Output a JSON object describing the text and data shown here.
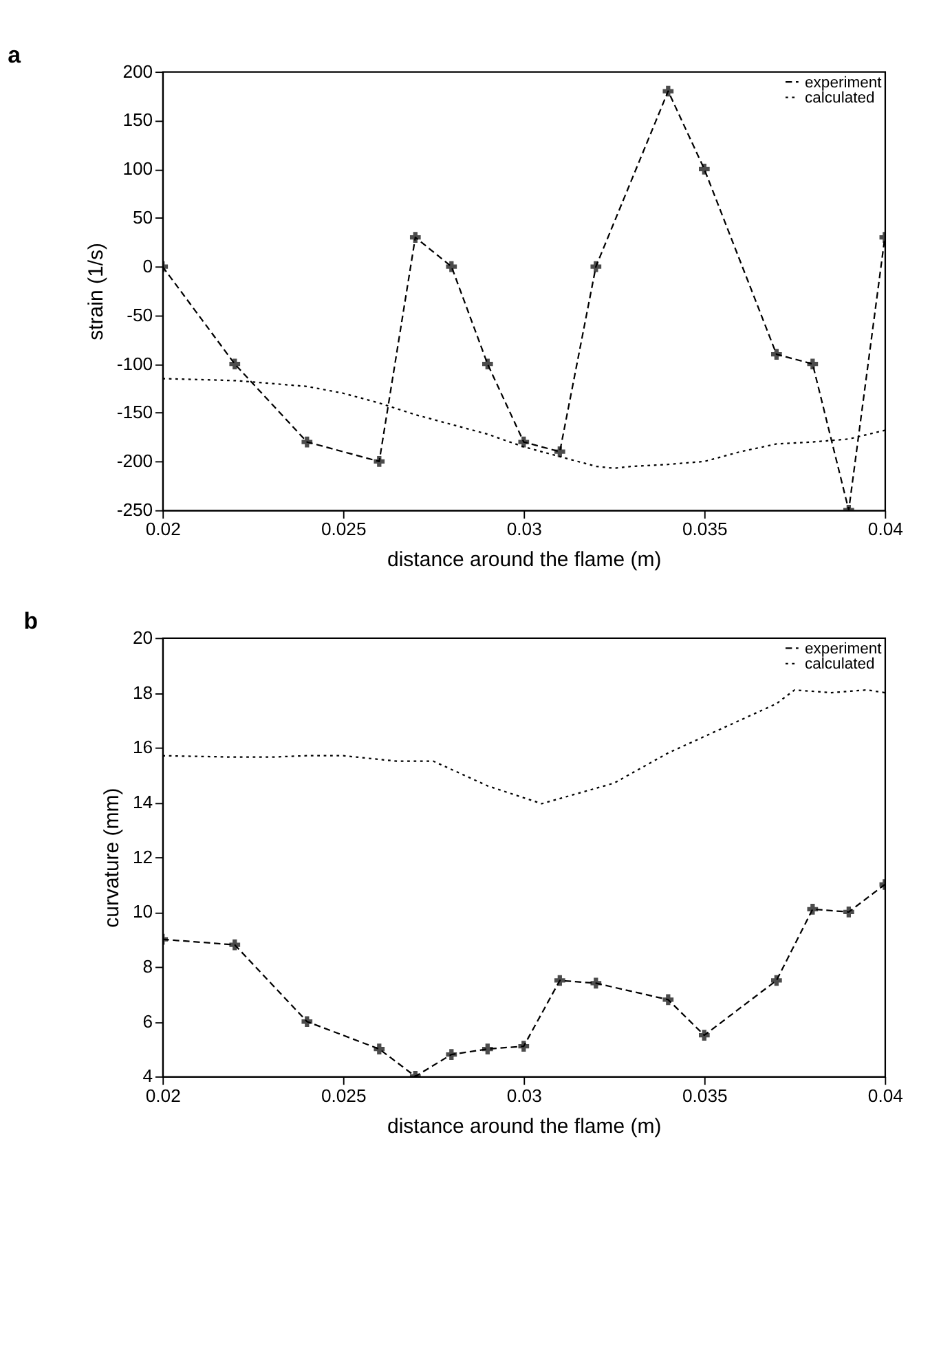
{
  "chart_data": [
    {
      "type": "line",
      "title": "a",
      "xlabel": "distance around the flame (m)",
      "ylabel": "strain (1/s)",
      "xlim": [
        0.02,
        0.04
      ],
      "xticks": [
        0.02,
        0.025,
        0.03,
        0.035,
        0.04
      ],
      "ylim": [
        -250,
        200
      ],
      "yticks": [
        -250,
        -200,
        -150,
        -100,
        -50,
        0,
        50,
        100,
        150,
        200
      ],
      "grid": false,
      "legend": "top right",
      "series": [
        {
          "name": "experiment",
          "color": "#000000",
          "marker": "cross",
          "line_style": "dashed",
          "x": [
            0.02,
            0.022,
            0.024,
            0.026,
            0.027,
            0.028,
            0.029,
            0.03,
            0.031,
            0.032,
            0.034,
            0.035,
            0.037,
            0.038,
            0.039,
            0.04
          ],
          "values": [
            0,
            -100,
            -180,
            -200,
            30,
            0,
            -100,
            -180,
            -190,
            0,
            180,
            100,
            -90,
            -100,
            -250,
            30
          ]
        },
        {
          "name": "calculated",
          "color": "#000000",
          "marker": "none",
          "line_style": "dotted",
          "x": [
            0.02,
            0.022,
            0.024,
            0.025,
            0.026,
            0.027,
            0.028,
            0.029,
            0.03,
            0.031,
            0.032,
            0.0325,
            0.033,
            0.034,
            0.035,
            0.036,
            0.037,
            0.038,
            0.039,
            0.04
          ],
          "values": [
            -115,
            -117,
            -123,
            -130,
            -140,
            -152,
            -162,
            -172,
            -185,
            -195,
            -205,
            -207,
            -205,
            -203,
            -200,
            -190,
            -182,
            -180,
            -177,
            -168
          ]
        }
      ]
    },
    {
      "type": "line",
      "title": "b",
      "xlabel": "distance around the flame (m)",
      "ylabel": "curvature (mm)",
      "xlim": [
        0.02,
        0.04
      ],
      "xticks": [
        0.02,
        0.025,
        0.03,
        0.035,
        0.04
      ],
      "ylim": [
        4,
        20
      ],
      "yticks": [
        4,
        6,
        8,
        10,
        12,
        14,
        16,
        18,
        20
      ],
      "grid": false,
      "legend": "top right",
      "series": [
        {
          "name": "experiment",
          "color": "#000000",
          "marker": "cross",
          "line_style": "dashed",
          "x": [
            0.02,
            0.022,
            0.024,
            0.026,
            0.027,
            0.028,
            0.029,
            0.03,
            0.031,
            0.032,
            0.034,
            0.035,
            0.037,
            0.038,
            0.039,
            0.04
          ],
          "values": [
            9,
            8.8,
            6,
            5,
            4,
            4.8,
            5,
            5.1,
            7.5,
            7.4,
            6.8,
            5.5,
            7.5,
            10.1,
            10,
            11
          ]
        },
        {
          "name": "calculated",
          "color": "#000000",
          "marker": "none",
          "line_style": "dotted",
          "x": [
            0.02,
            0.022,
            0.023,
            0.024,
            0.025,
            0.0265,
            0.0275,
            0.029,
            0.0305,
            0.0325,
            0.034,
            0.036,
            0.037,
            0.0375,
            0.0385,
            0.0395,
            0.04
          ],
          "values": [
            15.7,
            15.65,
            15.65,
            15.7,
            15.7,
            15.5,
            15.5,
            14.6,
            13.95,
            14.7,
            15.8,
            17.0,
            17.6,
            18.1,
            18.0,
            18.1,
            18.0
          ]
        }
      ]
    }
  ]
}
